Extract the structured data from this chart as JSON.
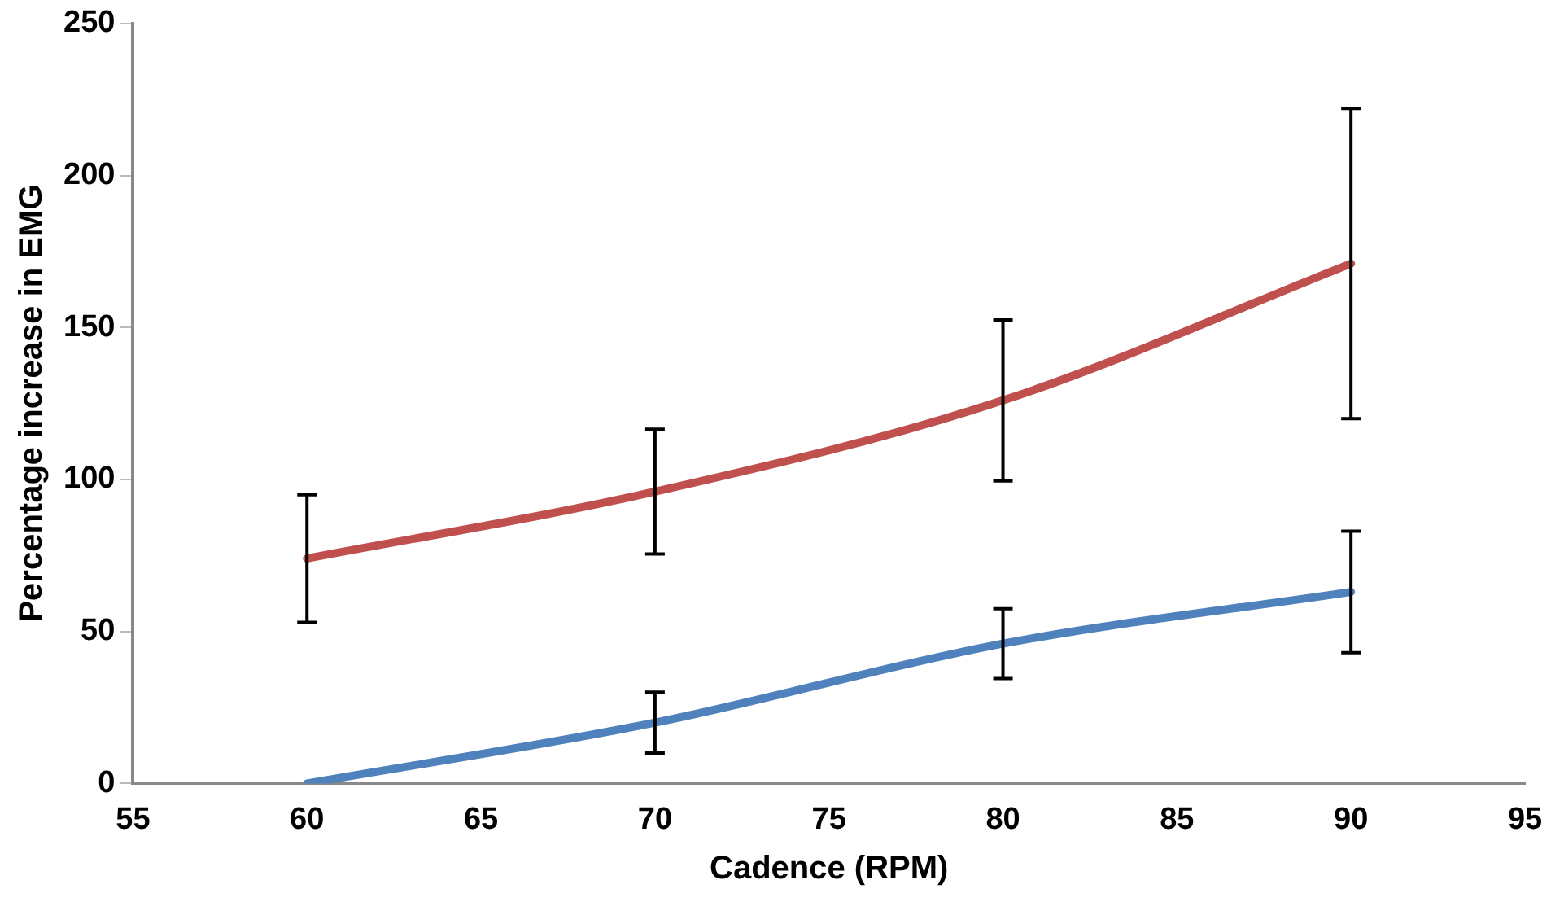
{
  "chart_data": {
    "type": "line",
    "xlabel": "Cadence (RPM)",
    "ylabel": "Percentage increase in EMG",
    "x": [
      60,
      70,
      80,
      90
    ],
    "series": [
      {
        "color": "#c0504d",
        "values": [
          74,
          96,
          126,
          171
        ],
        "errors": [
          21,
          20.5,
          26.5,
          51
        ]
      },
      {
        "color": "#4f81bd",
        "values": [
          0,
          20,
          46,
          63
        ],
        "errors": [
          null,
          10,
          11.5,
          20
        ]
      }
    ],
    "xlim": [
      55,
      95
    ],
    "xticks": [
      55,
      60,
      65,
      70,
      75,
      80,
      85,
      90,
      95
    ],
    "ylim": [
      0,
      250
    ],
    "yticks": [
      0,
      50,
      100,
      150,
      200,
      250
    ],
    "grid": false,
    "legend": false,
    "marker": "none",
    "line_style": "solid"
  }
}
